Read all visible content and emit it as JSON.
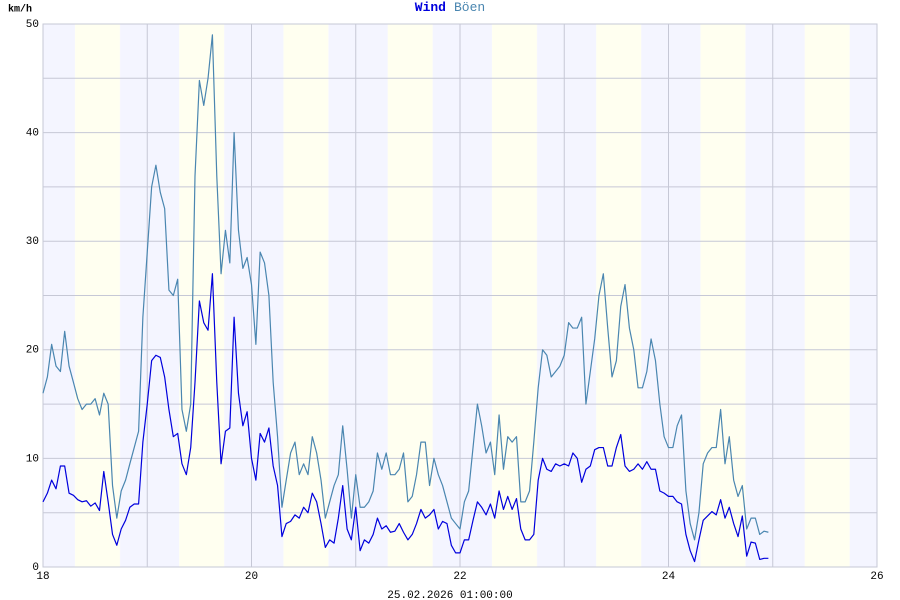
{
  "chart_data": {
    "type": "line",
    "ylabel": "km/h",
    "xlabel": "25.02.2026 01:00:00",
    "xlim": [
      18,
      26
    ],
    "xticks": [
      18,
      20,
      22,
      24,
      26
    ],
    "x_minor_ticks": [
      19,
      21,
      23,
      25
    ],
    "ylim": [
      0,
      50
    ],
    "yticks": [
      0,
      10,
      20,
      30,
      40,
      50
    ],
    "y_minor_ticks": [
      5,
      15,
      25,
      35,
      45
    ],
    "grid": true,
    "x": [
      18,
      18.042,
      18.083,
      18.125,
      18.167,
      18.208,
      18.25,
      18.292,
      18.333,
      18.375,
      18.417,
      18.458,
      18.5,
      18.542,
      18.583,
      18.625,
      18.667,
      18.708,
      18.75,
      18.792,
      18.833,
      18.875,
      18.917,
      18.958,
      19,
      19.042,
      19.083,
      19.125,
      19.167,
      19.208,
      19.25,
      19.292,
      19.333,
      19.375,
      19.417,
      19.458,
      19.5,
      19.542,
      19.583,
      19.625,
      19.667,
      19.708,
      19.75,
      19.792,
      19.833,
      19.875,
      19.917,
      19.958,
      20,
      20.042,
      20.083,
      20.125,
      20.167,
      20.208,
      20.25,
      20.292,
      20.333,
      20.375,
      20.417,
      20.458,
      20.5,
      20.542,
      20.583,
      20.625,
      20.667,
      20.708,
      20.75,
      20.792,
      20.833,
      20.875,
      20.917,
      20.958,
      21,
      21.042,
      21.083,
      21.125,
      21.167,
      21.208,
      21.25,
      21.292,
      21.333,
      21.375,
      21.417,
      21.458,
      21.5,
      21.542,
      21.583,
      21.625,
      21.667,
      21.708,
      21.75,
      21.792,
      21.833,
      21.875,
      21.917,
      21.958,
      22,
      22.042,
      22.083,
      22.125,
      22.167,
      22.208,
      22.25,
      22.292,
      22.333,
      22.375,
      22.417,
      22.458,
      22.5,
      22.542,
      22.583,
      22.625,
      22.667,
      22.708,
      22.75,
      22.792,
      22.833,
      22.875,
      22.917,
      22.958,
      23,
      23.042,
      23.083,
      23.125,
      23.167,
      23.208,
      23.25,
      23.292,
      23.333,
      23.375,
      23.417,
      23.458,
      23.5,
      23.542,
      23.583,
      23.625,
      23.667,
      23.708,
      23.75,
      23.792,
      23.833,
      23.875,
      23.917,
      23.958,
      24,
      24.042,
      24.083,
      24.125,
      24.167,
      24.208,
      24.25,
      24.292,
      24.333,
      24.375,
      24.417,
      24.458,
      24.5,
      24.542,
      24.583,
      24.625,
      24.667,
      24.708,
      24.75,
      24.792,
      24.833,
      24.875,
      24.917,
      24.958
    ],
    "series": [
      {
        "name": "Wind",
        "color": "#0000dd",
        "values": [
          6,
          6.8,
          8,
          7.2,
          9.3,
          9.3,
          6.8,
          6.6,
          6.2,
          6,
          6.1,
          5.6,
          5.9,
          5.2,
          8.8,
          6,
          3,
          2,
          3.5,
          4.3,
          5.5,
          5.8,
          5.8,
          11.5,
          15,
          19,
          19.5,
          19.3,
          17.5,
          14.5,
          12,
          12.3,
          9.5,
          8.5,
          11,
          17,
          24.5,
          22.5,
          21.8,
          27,
          17,
          9.5,
          12.5,
          12.8,
          23,
          16,
          13,
          14.3,
          10,
          8,
          12.3,
          11.5,
          12.8,
          9.3,
          7.5,
          2.8,
          4,
          4.2,
          4.8,
          4.5,
          5.5,
          5,
          6.8,
          6,
          4,
          1.8,
          2.5,
          2.2,
          4.5,
          7.5,
          3.5,
          2.5,
          5.5,
          1.5,
          2.5,
          2.2,
          3,
          4.5,
          3.5,
          3.8,
          3.2,
          3.3,
          4,
          3.2,
          2.5,
          3,
          4,
          5.3,
          4.5,
          4.8,
          5.3,
          3.5,
          4.2,
          4,
          2,
          1.3,
          1.3,
          2.5,
          2.5,
          4.3,
          6,
          5.5,
          4.8,
          5.8,
          4.5,
          7,
          5.3,
          6.5,
          5.3,
          6.3,
          3.5,
          2.5,
          2.5,
          3,
          8,
          10,
          9,
          8.8,
          9.5,
          9.3,
          9.5,
          9.3,
          10.5,
          10,
          7.8,
          9,
          9.3,
          10.8,
          11,
          11,
          9.3,
          9.3,
          11,
          12.2,
          9.3,
          8.8,
          9,
          9.5,
          9,
          9.7,
          9,
          9,
          7,
          6.8,
          6.5,
          6.5,
          6,
          5.8,
          3,
          1.5,
          0.5,
          2.5,
          4.3,
          4.7,
          5.1,
          4.8,
          6.2,
          4.5,
          5.5,
          4,
          2.8,
          4.7,
          1,
          2.3,
          2.2,
          0.7,
          0.8,
          0.8
        ]
      },
      {
        "name": "Böen",
        "color": "#4a86b0",
        "values": [
          16,
          17.5,
          20.5,
          18.5,
          18,
          21.7,
          18.5,
          17,
          15.5,
          14.5,
          15,
          15,
          15.5,
          14,
          16,
          15,
          7.5,
          4.5,
          7,
          8,
          9.5,
          11,
          12.5,
          23,
          29,
          35,
          37,
          34.5,
          33,
          25.5,
          25,
          26.5,
          14.5,
          12.5,
          15,
          36,
          44.8,
          42.5,
          45,
          49,
          36,
          27,
          31,
          28,
          40,
          31,
          27.5,
          28.5,
          26,
          20.5,
          29,
          28,
          25,
          17,
          12,
          5.5,
          8,
          10.5,
          11.5,
          8.5,
          9.5,
          8.5,
          12,
          10.5,
          8,
          4.5,
          6,
          7.5,
          8.5,
          13,
          9,
          4.5,
          8.5,
          5.5,
          5.5,
          6,
          7,
          10.5,
          9,
          10.5,
          8.5,
          8.5,
          9,
          10.5,
          6,
          6.5,
          8.5,
          11.5,
          11.5,
          7.5,
          10,
          8.5,
          7.5,
          6,
          4.5,
          4,
          3.5,
          6,
          7,
          11,
          15,
          13,
          10.5,
          11.5,
          8.5,
          14,
          9,
          12,
          11.5,
          12,
          6,
          6,
          7,
          11.5,
          16.5,
          20,
          19.5,
          17.5,
          18,
          18.5,
          19.5,
          22.5,
          22,
          22,
          23,
          15,
          18,
          21,
          25,
          27,
          22,
          17.5,
          19,
          24,
          26,
          22,
          20,
          16.5,
          16.5,
          18,
          21,
          19,
          15,
          12,
          11,
          11,
          13,
          14,
          7,
          4,
          2.5,
          5,
          9.5,
          10.5,
          11,
          11,
          14.5,
          9.5,
          12,
          8,
          6.5,
          7.5,
          3.5,
          4.5,
          4.5,
          3,
          3.3,
          3.2
        ]
      }
    ]
  }
}
